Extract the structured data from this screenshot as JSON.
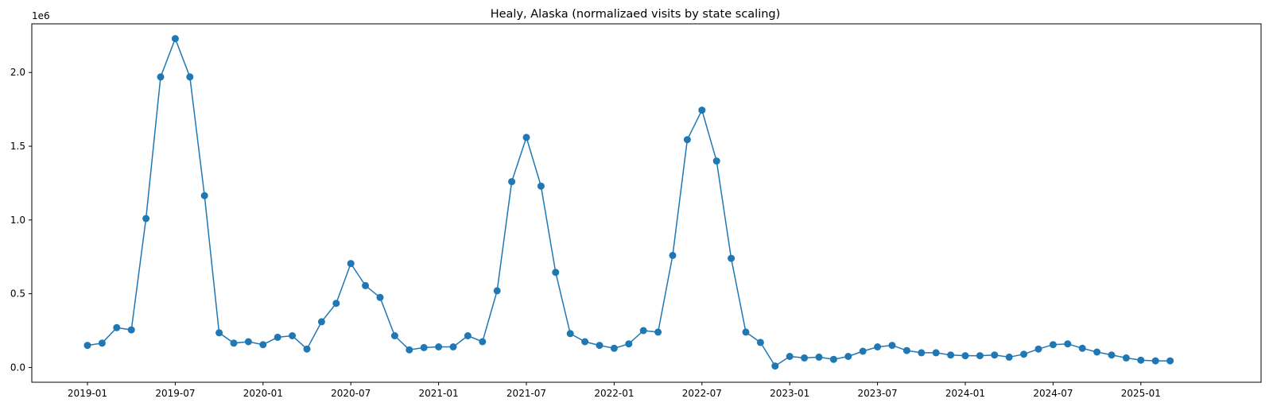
{
  "chart_data": {
    "type": "line",
    "title": "Healy, Alaska (normalizaed visits by state scaling)",
    "xlabel": "",
    "ylabel": "",
    "y_offset_text": "1e6",
    "ylim": [
      -0.1,
      2.33
    ],
    "y_ticks": [
      0.0,
      0.5,
      1.0,
      1.5,
      2.0
    ],
    "y_tick_labels": [
      "0.0",
      "0.5",
      "1.0",
      "1.5",
      "2.0"
    ],
    "x_ticks": [
      "2019-01",
      "2019-07",
      "2020-01",
      "2020-07",
      "2021-01",
      "2021-07",
      "2022-01",
      "2022-07",
      "2023-01",
      "2023-07",
      "2024-01",
      "2024-07",
      "2025-01"
    ],
    "grid": false,
    "legend": "none",
    "marker": "circle",
    "color": "#1f77b4",
    "series": [
      {
        "x": [
          "2019-01",
          "2019-02",
          "2019-03",
          "2019-04",
          "2019-05",
          "2019-06",
          "2019-07",
          "2019-08",
          "2019-09",
          "2019-10",
          "2019-11",
          "2019-12",
          "2020-01",
          "2020-02",
          "2020-03",
          "2020-04",
          "2020-05",
          "2020-06",
          "2020-07",
          "2020-08",
          "2020-09",
          "2020-10",
          "2020-11",
          "2020-12",
          "2021-01",
          "2021-02",
          "2021-03",
          "2021-04",
          "2021-05",
          "2021-06",
          "2021-07",
          "2021-08",
          "2021-09",
          "2021-10",
          "2021-11",
          "2021-12",
          "2022-01",
          "2022-02",
          "2022-03",
          "2022-04",
          "2022-05",
          "2022-06",
          "2022-07",
          "2022-08",
          "2022-09",
          "2022-10",
          "2022-11",
          "2022-12",
          "2023-01",
          "2023-02",
          "2023-03",
          "2023-04",
          "2023-05",
          "2023-06",
          "2023-07",
          "2023-08",
          "2023-09",
          "2023-10",
          "2023-11",
          "2023-12",
          "2024-01",
          "2024-02",
          "2024-03",
          "2024-04",
          "2024-05",
          "2024-06",
          "2024-07",
          "2024-08",
          "2024-09",
          "2024-10",
          "2024-11",
          "2024-12",
          "2025-01",
          "2025-02",
          "2025-03"
        ],
        "values": [
          0.15,
          0.165,
          0.27,
          0.255,
          1.01,
          1.97,
          2.23,
          1.97,
          1.165,
          0.235,
          0.165,
          0.175,
          0.155,
          0.205,
          0.215,
          0.125,
          0.31,
          0.435,
          0.705,
          0.555,
          0.475,
          0.215,
          0.12,
          0.135,
          0.14,
          0.14,
          0.215,
          0.175,
          0.52,
          1.26,
          1.56,
          1.23,
          0.645,
          0.23,
          0.175,
          0.15,
          0.13,
          0.16,
          0.25,
          0.24,
          0.76,
          1.545,
          1.745,
          1.4,
          0.74,
          0.24,
          0.17,
          0.01,
          0.075,
          0.065,
          0.07,
          0.055,
          0.075,
          0.11,
          0.14,
          0.15,
          0.115,
          0.1,
          0.1,
          0.085,
          0.08,
          0.08,
          0.085,
          0.07,
          0.09,
          0.125,
          0.155,
          0.16,
          0.13,
          0.105,
          0.085,
          0.065,
          0.05,
          0.045,
          0.045
        ]
      }
    ]
  }
}
